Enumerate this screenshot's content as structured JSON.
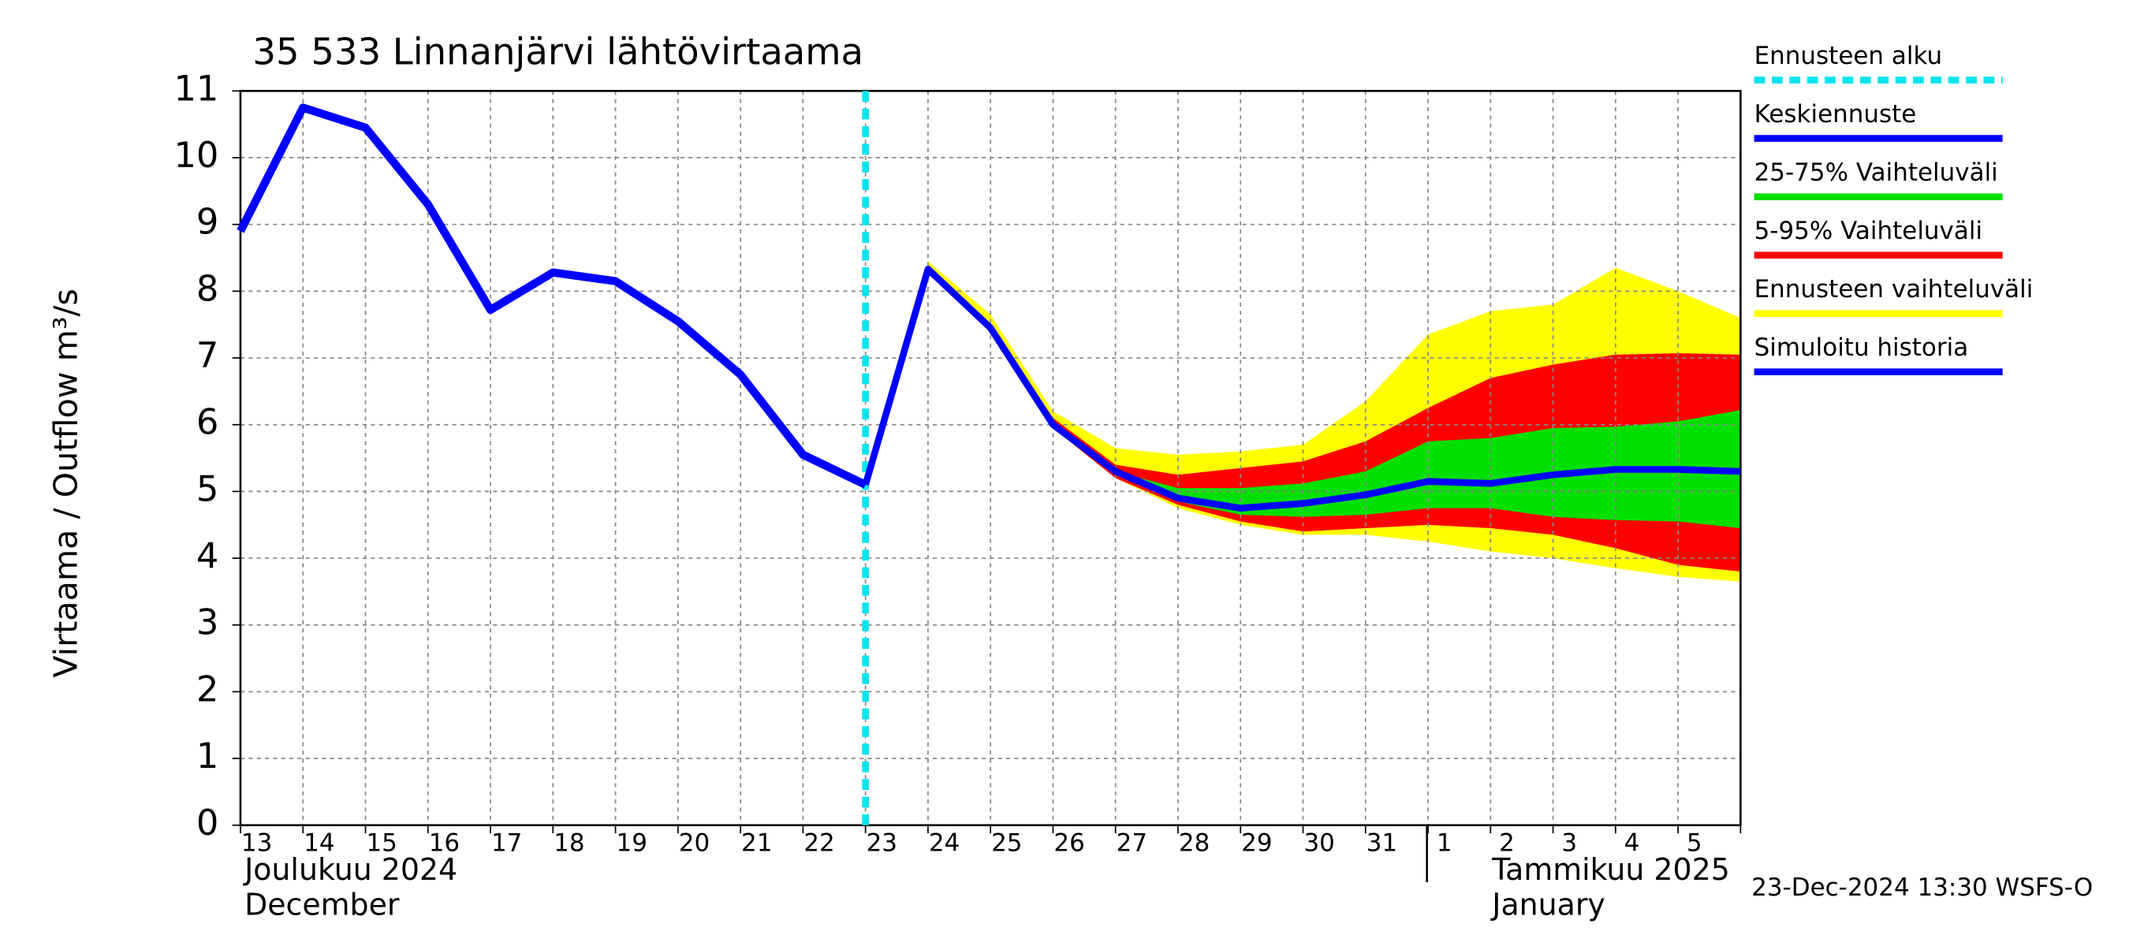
{
  "chart_data": {
    "type": "line",
    "title": "35 533 Linnanjärvi lähtövirtaama",
    "ylabel": "Virtaama / Outflow    m³/s",
    "categories": [
      "13",
      "14",
      "15",
      "16",
      "17",
      "18",
      "19",
      "20",
      "21",
      "22",
      "23",
      "24",
      "25",
      "26",
      "27",
      "28",
      "29",
      "30",
      "31",
      "1",
      "2",
      "3",
      "4",
      "5",
      null
    ],
    "month_labels": [
      {
        "fi": "Joulukuu  2024",
        "en": "December"
      },
      {
        "fi": "Tammikuu  2025",
        "en": "January"
      }
    ],
    "footer": "23-Dec-2024 13:30 WSFS-O",
    "ylim": [
      0,
      11
    ],
    "yticks": [
      0,
      1,
      2,
      3,
      4,
      5,
      6,
      7,
      8,
      9,
      10,
      11
    ],
    "grid": true,
    "forecast_start": {
      "name": "Ennusteen alku",
      "color": "#00e5ee",
      "category": "23"
    },
    "bands": [
      {
        "name": "Ennusteen vaihteluväli",
        "color": "#ffff00",
        "high": [
          null,
          null,
          null,
          null,
          null,
          null,
          null,
          null,
          null,
          null,
          null,
          8.45,
          7.65,
          6.2,
          5.65,
          5.55,
          5.6,
          5.7,
          6.35,
          7.35,
          7.7,
          7.8,
          8.35,
          8.0,
          7.6
        ],
        "low": [
          null,
          null,
          null,
          null,
          null,
          null,
          null,
          null,
          null,
          null,
          null,
          8.3,
          7.4,
          5.95,
          5.2,
          4.75,
          4.5,
          4.35,
          4.35,
          4.25,
          4.1,
          4.0,
          3.85,
          3.72,
          3.65
        ]
      },
      {
        "name": "5-95% Vaihteluväli",
        "color": "#ff0000",
        "high": [
          null,
          null,
          null,
          null,
          null,
          null,
          null,
          null,
          null,
          null,
          null,
          8.35,
          7.5,
          6.1,
          5.4,
          5.25,
          5.35,
          5.45,
          5.75,
          6.25,
          6.7,
          6.9,
          7.05,
          7.07,
          7.05
        ],
        "low": [
          null,
          null,
          null,
          null,
          null,
          null,
          null,
          null,
          null,
          null,
          null,
          8.3,
          7.4,
          5.95,
          5.2,
          4.8,
          4.55,
          4.4,
          4.45,
          4.5,
          4.45,
          4.35,
          4.15,
          3.9,
          3.8
        ]
      },
      {
        "name": "25-75% Vaihteluväli",
        "color": "#00e000",
        "high": [
          null,
          null,
          null,
          null,
          null,
          null,
          null,
          null,
          null,
          null,
          null,
          8.33,
          7.45,
          6.02,
          5.3,
          5.05,
          5.05,
          5.12,
          5.3,
          5.75,
          5.8,
          5.95,
          5.97,
          6.05,
          6.22
        ],
        "low": [
          null,
          null,
          null,
          null,
          null,
          null,
          null,
          null,
          null,
          null,
          null,
          8.33,
          7.45,
          5.98,
          5.25,
          4.85,
          4.65,
          4.62,
          4.65,
          4.75,
          4.75,
          4.62,
          4.57,
          4.55,
          4.45
        ]
      }
    ],
    "series": [
      {
        "name": "Keskiennuste",
        "color": "#0000ff",
        "values": [
          null,
          null,
          null,
          null,
          null,
          null,
          null,
          null,
          null,
          null,
          5.1,
          8.33,
          7.45,
          6.0,
          5.3,
          4.9,
          4.75,
          4.82,
          4.95,
          5.15,
          5.12,
          5.25,
          5.33,
          5.33,
          5.3
        ]
      },
      {
        "name": "Simuloitu historia",
        "color": "#0000ff",
        "values": [
          8.9,
          10.75,
          10.45,
          9.3,
          7.72,
          8.28,
          8.15,
          7.55,
          6.75,
          5.55,
          5.1,
          null,
          null,
          null,
          null,
          null,
          null,
          null,
          null,
          null,
          null,
          null,
          null,
          null,
          null
        ]
      }
    ]
  }
}
